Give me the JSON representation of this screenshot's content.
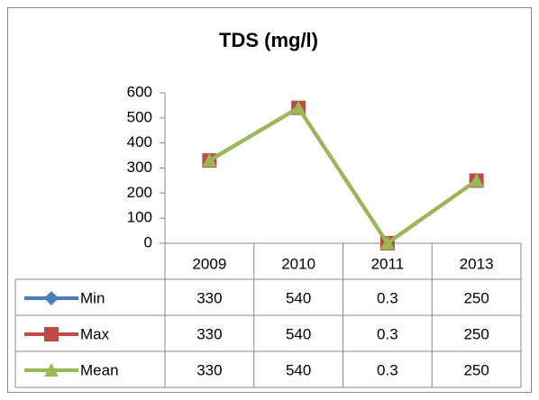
{
  "chart_data": {
    "type": "line",
    "title": "TDS (mg/l)",
    "categories": [
      "2009",
      "2010",
      "2011",
      "2013"
    ],
    "series": [
      {
        "name": "Min",
        "color": "#4a7ebb",
        "marker": "diamond",
        "values": [
          330,
          540,
          0.3,
          250
        ]
      },
      {
        "name": "Max",
        "color": "#be4b48",
        "marker": "square",
        "values": [
          330,
          540,
          0.3,
          250
        ]
      },
      {
        "name": "Mean",
        "color": "#98b954",
        "marker": "triangle",
        "values": [
          330,
          540,
          0.3,
          250
        ]
      }
    ],
    "ylim": [
      0,
      600
    ],
    "yticks": [
      0,
      100,
      200,
      300,
      400,
      500,
      600
    ],
    "grid": false,
    "data_table": true
  }
}
